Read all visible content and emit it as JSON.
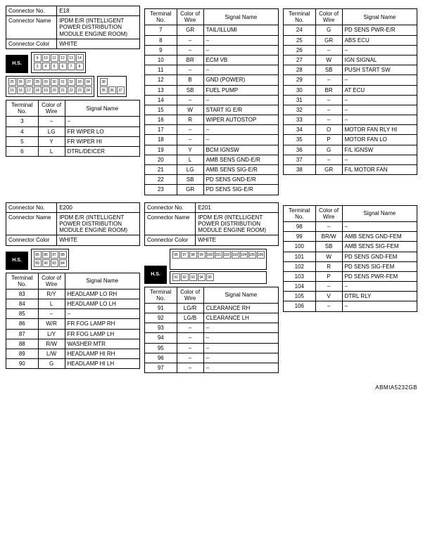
{
  "labels": {
    "connector_no": "Connector No.",
    "connector_name": "Connector Name",
    "connector_color": "Connector Color",
    "terminal_no": "Terminal No.",
    "color_of_wire": "Color of Wire",
    "signal_name": "Signal Name",
    "hs": "H.S."
  },
  "footer": "ABMIA5232GB",
  "block_e18": {
    "no": "E18",
    "name": "IPDM E/R (INTELLIGENT POWER DISTRIBUTION MODULE ENGINE ROOM)",
    "color": "WHITE",
    "pins": {
      "rows": [
        [
          "9",
          "10",
          "11",
          "12",
          "13",
          "14"
        ],
        [
          "3",
          "4",
          "5",
          "6",
          "7",
          "8"
        ]
      ],
      "rows_right": [
        [
          "25",
          "26",
          "27",
          "28",
          "29",
          "30",
          "31",
          "32",
          "33",
          "34"
        ],
        [
          "15",
          "16",
          "17",
          "18",
          "19",
          "20",
          "21",
          "22",
          "23",
          "24"
        ]
      ],
      "detached": [
        [
          "38",
          "",
          ""
        ],
        [
          "35",
          "36",
          "37"
        ]
      ]
    },
    "table1": [
      [
        "3",
        "–",
        "–"
      ],
      [
        "4",
        "LG",
        "FR WIPER LO"
      ],
      [
        "5",
        "Y",
        "FR WIPER HI"
      ],
      [
        "6",
        "L",
        "DTRL/DEICER"
      ]
    ],
    "table2": [
      [
        "7",
        "GR",
        "TAIL/ILLUMI"
      ],
      [
        "8",
        "–",
        "–"
      ],
      [
        "9",
        "–",
        "–"
      ],
      [
        "10",
        "BR",
        "ECM VB"
      ],
      [
        "11",
        "–",
        "–"
      ],
      [
        "12",
        "B",
        "GND (POWER)"
      ],
      [
        "13",
        "SB",
        "FUEL PUMP"
      ],
      [
        "14",
        "–",
        "–"
      ],
      [
        "15",
        "W",
        "START IG E/R"
      ],
      [
        "16",
        "R",
        "WIPER AUTOSTOP"
      ],
      [
        "17",
        "–",
        "–"
      ],
      [
        "18",
        "–",
        "–"
      ],
      [
        "19",
        "Y",
        "BCM IGNSW"
      ],
      [
        "20",
        "L",
        "AMB SENS GND-E/R"
      ],
      [
        "21",
        "LG",
        "AMB SENS SIG-E/R"
      ],
      [
        "22",
        "SB",
        "PD SENS GND-E/R"
      ],
      [
        "23",
        "GR",
        "PD SENS SIG-E/R"
      ]
    ],
    "table3": [
      [
        "24",
        "G",
        "PD SENS PWR-E/R"
      ],
      [
        "25",
        "GR",
        "ABS ECU"
      ],
      [
        "26",
        "–",
        "–"
      ],
      [
        "27",
        "W",
        "IGN SIGNAL"
      ],
      [
        "28",
        "SB",
        "PUSH START SW"
      ],
      [
        "29",
        "–",
        "–"
      ],
      [
        "30",
        "BR",
        "AT ECU"
      ],
      [
        "31",
        "–",
        "–"
      ],
      [
        "32",
        "–",
        "–"
      ],
      [
        "33",
        "–",
        "–"
      ],
      [
        "34",
        "O",
        "MOTOR FAN RLY HI"
      ],
      [
        "35",
        "P",
        "MOTOR FAN LO"
      ],
      [
        "36",
        "G",
        "F/L IGNSW"
      ],
      [
        "37",
        "–",
        "–"
      ],
      [
        "38",
        "GR",
        "F/L MOTOR FAN"
      ]
    ]
  },
  "block_e200": {
    "no": "E200",
    "name": "IPDM E/R (INTELLIGENT POWER DISTRIBUTION MODULE ENGINE ROOM)",
    "color": "WHITE",
    "pins": {
      "rows": [
        [
          "85",
          "86",
          "87",
          "88"
        ],
        [
          "89",
          "90",
          "83",
          "84"
        ]
      ]
    },
    "table": [
      [
        "83",
        "R/Y",
        "HEADLAMP LO RH"
      ],
      [
        "84",
        "L",
        "HEADLAMP LO LH"
      ],
      [
        "85",
        "–",
        "–"
      ],
      [
        "86",
        "W/R",
        "FR FOG LAMP RH"
      ],
      [
        "87",
        "L/Y",
        "FR FOG LAMP LH"
      ],
      [
        "88",
        "R/W",
        "WASHER MTR"
      ],
      [
        "89",
        "L/W",
        "HEADLAMP HI RH"
      ],
      [
        "90",
        "G",
        "HEADLAMP HI LH"
      ]
    ]
  },
  "block_e201": {
    "no": "E201",
    "name": "IPDM E/R (INTELLIGENT POWER DISTRIBUTION MODULE ENGINE ROOM)",
    "color": "WHITE",
    "pins": {
      "rows": [
        [
          "96",
          "97",
          "98",
          "99",
          "100",
          "101",
          "102",
          "103",
          "104",
          "105",
          "106"
        ],
        [
          "",
          "",
          "",
          "",
          "",
          "",
          "",
          "",
          "",
          "",
          ""
        ]
      ],
      "rows2": [
        [
          "91",
          "92",
          "93",
          "94",
          "95"
        ]
      ]
    },
    "table1": [
      [
        "91",
        "LG/R",
        "CLEARANCE RH"
      ],
      [
        "92",
        "LG/B",
        "CLEARANCE LH"
      ],
      [
        "93",
        "–",
        "–"
      ],
      [
        "94",
        "–",
        "–"
      ],
      [
        "95",
        "–",
        "–"
      ],
      [
        "96",
        "–",
        "–"
      ],
      [
        "97",
        "–",
        "–"
      ]
    ],
    "table2": [
      [
        "98",
        "–",
        "–"
      ],
      [
        "99",
        "BR/W",
        "AMB SENS GND-FEM"
      ],
      [
        "100",
        "SB",
        "AMB SENS SIG-FEM"
      ],
      [
        "101",
        "W",
        "PD SENS GND-FEM"
      ],
      [
        "102",
        "R",
        "PD SENS SIG-FEM"
      ],
      [
        "103",
        "P",
        "PD SENS PWR-FEM"
      ],
      [
        "104",
        "–",
        "–"
      ],
      [
        "105",
        "V",
        "DTRL RLY"
      ],
      [
        "106",
        "–",
        "–"
      ]
    ]
  }
}
